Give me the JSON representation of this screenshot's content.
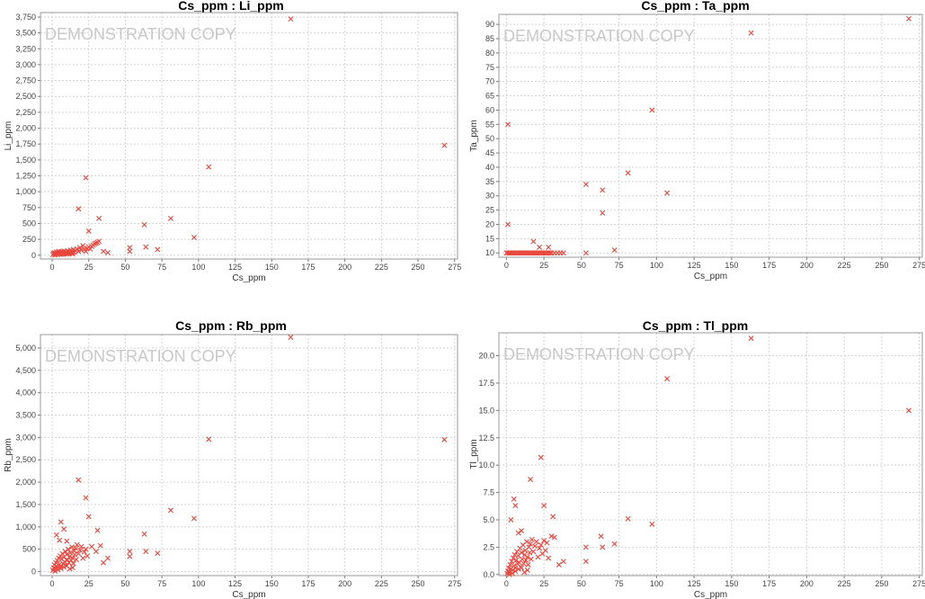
{
  "colors": {
    "marker": "#e8473e",
    "grid": "#d4d4d4",
    "frame": "#9a9a9a"
  },
  "watermark": "DEMONSTRATION COPY",
  "chart_data": [
    {
      "type": "scatter",
      "title": "Cs_ppm : Li_ppm",
      "xlabel": "Cs_ppm",
      "ylabel": "Li_ppm",
      "xlim": [
        -8,
        277
      ],
      "ylim": [
        -60,
        3820
      ],
      "xticks": [
        0,
        25,
        50,
        75,
        100,
        125,
        150,
        175,
        200,
        225,
        250,
        275
      ],
      "yticks": [
        0,
        250,
        500,
        750,
        1000,
        1250,
        1500,
        1750,
        2000,
        2250,
        2500,
        2750,
        3000,
        3250,
        3500,
        3750
      ],
      "yticklabels": [
        "0",
        "250",
        "500",
        "750",
        "1,000",
        "1,250",
        "1,500",
        "1,750",
        "2,000",
        "2,250",
        "2,500",
        "2,750",
        "3,000",
        "3,250",
        "3,500",
        "3,750"
      ],
      "points": [
        [
          0.5,
          10
        ],
        [
          1,
          25
        ],
        [
          1.5,
          40
        ],
        [
          2,
          15
        ],
        [
          2.5,
          30
        ],
        [
          3,
          50
        ],
        [
          3.5,
          20
        ],
        [
          4,
          35
        ],
        [
          4.5,
          60
        ],
        [
          5,
          25
        ],
        [
          5.5,
          45
        ],
        [
          6,
          30
        ],
        [
          6.5,
          55
        ],
        [
          7,
          20
        ],
        [
          7.5,
          40
        ],
        [
          8,
          65
        ],
        [
          8.5,
          35
        ],
        [
          9,
          50
        ],
        [
          9.5,
          25
        ],
        [
          10,
          45
        ],
        [
          10.5,
          70
        ],
        [
          11,
          30
        ],
        [
          11.5,
          55
        ],
        [
          12,
          40
        ],
        [
          12.5,
          80
        ],
        [
          13,
          35
        ],
        [
          13.5,
          60
        ],
        [
          14,
          45
        ],
        [
          14.5,
          90
        ],
        [
          15,
          50
        ],
        [
          16,
          70
        ],
        [
          17,
          100
        ],
        [
          18,
          60
        ],
        [
          19,
          120
        ],
        [
          20,
          80
        ],
        [
          21,
          150
        ],
        [
          22,
          90
        ],
        [
          23,
          60
        ],
        [
          24,
          110
        ],
        [
          25,
          130
        ],
        [
          26,
          100
        ],
        [
          27,
          140
        ],
        [
          28,
          160
        ],
        [
          29,
          180
        ],
        [
          30,
          190
        ],
        [
          31,
          200
        ],
        [
          32,
          220
        ],
        [
          2,
          5
        ],
        [
          4,
          15
        ],
        [
          6,
          12
        ],
        [
          8,
          18
        ],
        [
          10,
          22
        ],
        [
          12,
          28
        ],
        [
          14,
          20
        ],
        [
          18,
          730
        ],
        [
          23,
          1220
        ],
        [
          25,
          380
        ],
        [
          32,
          580
        ],
        [
          35,
          60
        ],
        [
          38,
          40
        ],
        [
          53,
          120
        ],
        [
          53,
          60
        ],
        [
          63,
          480
        ],
        [
          64,
          130
        ],
        [
          72,
          90
        ],
        [
          81,
          580
        ],
        [
          97,
          280
        ],
        [
          107,
          1390
        ],
        [
          163,
          3720
        ],
        [
          268,
          1730
        ]
      ]
    },
    {
      "type": "scatter",
      "title": "Cs_ppm : Ta_ppm",
      "xlabel": "Cs_ppm",
      "ylabel": "Ta_ppm",
      "xlim": [
        -5,
        277
      ],
      "ylim": [
        8.5,
        93.5
      ],
      "xticks": [
        0,
        25,
        50,
        75,
        100,
        125,
        150,
        175,
        200,
        225,
        250,
        275
      ],
      "yticks": [
        10,
        15,
        20,
        25,
        30,
        35,
        40,
        45,
        50,
        55,
        60,
        65,
        70,
        75,
        80,
        85,
        90
      ],
      "yticklabels": [
        "10",
        "15",
        "20",
        "25",
        "30",
        "35",
        "40",
        "45",
        "50",
        "55",
        "60",
        "65",
        "70",
        "75",
        "80",
        "85",
        "90"
      ],
      "points": [
        [
          0,
          10
        ],
        [
          1,
          10
        ],
        [
          2,
          10
        ],
        [
          3,
          10
        ],
        [
          4,
          10
        ],
        [
          5,
          10
        ],
        [
          6,
          10
        ],
        [
          7,
          10
        ],
        [
          8,
          10
        ],
        [
          9,
          10
        ],
        [
          10,
          10
        ],
        [
          11,
          10
        ],
        [
          12,
          10
        ],
        [
          13,
          10
        ],
        [
          14,
          10
        ],
        [
          15,
          10
        ],
        [
          16,
          10
        ],
        [
          17,
          10
        ],
        [
          18,
          10
        ],
        [
          19,
          10
        ],
        [
          20,
          10
        ],
        [
          21,
          10
        ],
        [
          22,
          10
        ],
        [
          23,
          10
        ],
        [
          24,
          10
        ],
        [
          25,
          10
        ],
        [
          26,
          10
        ],
        [
          27,
          10
        ],
        [
          28,
          10
        ],
        [
          29,
          10
        ],
        [
          30,
          10
        ],
        [
          32,
          10
        ],
        [
          34,
          10
        ],
        [
          36,
          10
        ],
        [
          38,
          10
        ],
        [
          1,
          20
        ],
        [
          1,
          55
        ],
        [
          18,
          14
        ],
        [
          22,
          12
        ],
        [
          28,
          12
        ],
        [
          53,
          34
        ],
        [
          53,
          10
        ],
        [
          64,
          32
        ],
        [
          64,
          24
        ],
        [
          72,
          11
        ],
        [
          81,
          38
        ],
        [
          97,
          60
        ],
        [
          107,
          31
        ],
        [
          163,
          87
        ],
        [
          268,
          92
        ]
      ]
    },
    {
      "type": "scatter",
      "title": "Cs_ppm : Rb_ppm",
      "xlabel": "Cs_ppm",
      "ylabel": "Rb_ppm",
      "xlim": [
        -8,
        277
      ],
      "ylim": [
        -90,
        5300
      ],
      "xticks": [
        0,
        25,
        50,
        75,
        100,
        125,
        150,
        175,
        200,
        225,
        250,
        275
      ],
      "yticks": [
        0,
        500,
        1000,
        1500,
        2000,
        2500,
        3000,
        3500,
        4000,
        4500,
        5000
      ],
      "yticklabels": [
        "0",
        "500",
        "1,000",
        "1,500",
        "2,000",
        "2,500",
        "3,000",
        "3,500",
        "4,000",
        "4,500",
        "5,000"
      ],
      "points": [
        [
          0.5,
          30
        ],
        [
          1,
          80
        ],
        [
          1.5,
          150
        ],
        [
          2,
          60
        ],
        [
          2.5,
          200
        ],
        [
          3,
          120
        ],
        [
          3.5,
          250
        ],
        [
          4,
          90
        ],
        [
          4.5,
          300
        ],
        [
          5,
          160
        ],
        [
          5.5,
          350
        ],
        [
          6,
          110
        ],
        [
          6.5,
          280
        ],
        [
          7,
          400
        ],
        [
          7.5,
          180
        ],
        [
          8,
          320
        ],
        [
          8.5,
          220
        ],
        [
          9,
          450
        ],
        [
          9.5,
          140
        ],
        [
          10,
          380
        ],
        [
          10.5,
          260
        ],
        [
          11,
          500
        ],
        [
          11.5,
          200
        ],
        [
          12,
          340
        ],
        [
          12.5,
          420
        ],
        [
          13,
          250
        ],
        [
          13.5,
          550
        ],
        [
          14,
          300
        ],
        [
          14.5,
          180
        ],
        [
          15,
          460
        ],
        [
          15.5,
          380
        ],
        [
          16,
          520
        ],
        [
          16.5,
          270
        ],
        [
          17,
          600
        ],
        [
          18,
          400
        ],
        [
          19,
          480
        ],
        [
          20,
          560
        ],
        [
          21,
          300
        ],
        [
          22,
          440
        ],
        [
          23,
          500
        ],
        [
          24,
          350
        ],
        [
          2,
          10
        ],
        [
          4,
          40
        ],
        [
          6,
          70
        ],
        [
          8,
          100
        ],
        [
          10,
          130
        ],
        [
          12,
          60
        ],
        [
          14,
          90
        ],
        [
          3,
          820
        ],
        [
          6,
          1110
        ],
        [
          8,
          950
        ],
        [
          5,
          700
        ],
        [
          10,
          680
        ],
        [
          18,
          2050
        ],
        [
          23,
          1650
        ],
        [
          25,
          1230
        ],
        [
          27,
          560
        ],
        [
          30,
          450
        ],
        [
          31,
          920
        ],
        [
          33,
          580
        ],
        [
          35,
          200
        ],
        [
          38,
          300
        ],
        [
          53,
          450
        ],
        [
          53,
          340
        ],
        [
          63,
          840
        ],
        [
          64,
          450
        ],
        [
          72,
          410
        ],
        [
          81,
          1370
        ],
        [
          97,
          1190
        ],
        [
          107,
          2960
        ],
        [
          163,
          5240
        ],
        [
          268,
          2950
        ]
      ]
    },
    {
      "type": "scatter",
      "title": "Cs_ppm : Tl_ppm",
      "xlabel": "Cs_ppm",
      "ylabel": "Tl_ppm",
      "xlim": [
        -5,
        277
      ],
      "ylim": [
        -0.1,
        22.1
      ],
      "xticks": [
        0,
        25,
        50,
        75,
        100,
        125,
        150,
        175,
        200,
        225,
        250,
        275
      ],
      "yticks": [
        0,
        2.5,
        5,
        7.5,
        10,
        12.5,
        15,
        17.5,
        20
      ],
      "yticklabels": [
        "0.0",
        "2.5",
        "5.0",
        "7.5",
        "10.0",
        "12.5",
        "15.0",
        "17.5",
        "20.0"
      ],
      "points": [
        [
          0.5,
          0.1
        ],
        [
          1,
          0.3
        ],
        [
          1.5,
          0.6
        ],
        [
          2,
          0.2
        ],
        [
          2.5,
          0.9
        ],
        [
          3,
          0.5
        ],
        [
          3.5,
          1.2
        ],
        [
          4,
          0.4
        ],
        [
          4.5,
          1.5
        ],
        [
          5,
          0.8
        ],
        [
          5.5,
          1.8
        ],
        [
          6,
          0.6
        ],
        [
          6.5,
          1.3
        ],
        [
          7,
          2.1
        ],
        [
          7.5,
          1
        ],
        [
          8,
          1.7
        ],
        [
          8.5,
          1.1
        ],
        [
          9,
          2.4
        ],
        [
          9.5,
          0.7
        ],
        [
          10,
          2
        ],
        [
          10.5,
          1.4
        ],
        [
          11,
          2.7
        ],
        [
          11.5,
          1
        ],
        [
          12,
          1.8
        ],
        [
          12.5,
          2.2
        ],
        [
          13,
          1.3
        ],
        [
          13.5,
          3
        ],
        [
          14,
          1.6
        ],
        [
          14.5,
          0.9
        ],
        [
          15,
          2.5
        ],
        [
          15.5,
          2
        ],
        [
          16,
          2.8
        ],
        [
          16.5,
          1.4
        ],
        [
          17,
          3.2
        ],
        [
          18,
          2.1
        ],
        [
          19,
          2.6
        ],
        [
          20,
          3
        ],
        [
          21,
          1.6
        ],
        [
          22,
          2.4
        ],
        [
          23,
          2.7
        ],
        [
          24,
          1.9
        ],
        [
          25,
          3.1
        ],
        [
          26,
          2.2
        ],
        [
          27,
          2.9
        ],
        [
          28,
          1.5
        ],
        [
          2,
          0
        ],
        [
          4,
          0.1
        ],
        [
          6,
          0.3
        ],
        [
          8,
          0.5
        ],
        [
          10,
          0.6
        ],
        [
          12,
          0.2
        ],
        [
          14,
          0.4
        ],
        [
          3,
          5
        ],
        [
          5,
          6.9
        ],
        [
          6,
          6.3
        ],
        [
          8,
          3.8
        ],
        [
          10,
          4
        ],
        [
          16,
          8.7
        ],
        [
          23,
          10.7
        ],
        [
          25,
          6.3
        ],
        [
          30,
          3.5
        ],
        [
          31,
          5.3
        ],
        [
          32,
          3.4
        ],
        [
          35,
          0.9
        ],
        [
          38,
          1.2
        ],
        [
          53,
          2.5
        ],
        [
          53,
          1.2
        ],
        [
          63,
          3.5
        ],
        [
          64,
          2.5
        ],
        [
          72,
          2.8
        ],
        [
          81,
          5.1
        ],
        [
          97,
          4.6
        ],
        [
          107,
          17.9
        ],
        [
          163,
          21.6
        ],
        [
          268,
          15
        ]
      ]
    }
  ]
}
